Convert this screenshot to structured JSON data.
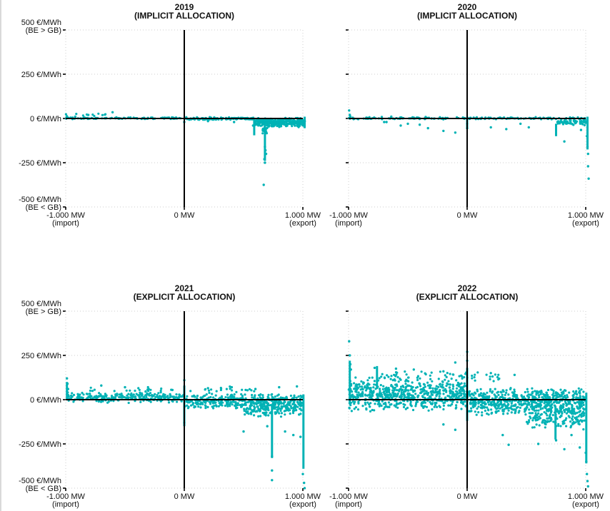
{
  "colors": {
    "points": "#00b2b5",
    "axis": "#000000",
    "grid": "#cccccc"
  },
  "chart_data": [
    {
      "type": "scatter",
      "title": [
        "2019",
        "(IMPLICIT ALLOCATION)"
      ],
      "xlim": [
        -1000,
        1000
      ],
      "ylim": [
        -500,
        500
      ],
      "show_y_labels": true,
      "x_ticks": [
        {
          "value": -1000,
          "label": [
            "-1.000 MW",
            "(import)"
          ]
        },
        {
          "value": 0,
          "label": [
            "0 MW"
          ]
        },
        {
          "value": 1000,
          "label": [
            "1.000 MW",
            "(export)"
          ]
        }
      ],
      "y_ticks": [
        {
          "value": 500,
          "label": [
            "500 €/MWh",
            "(BE > GB)"
          ]
        },
        {
          "value": 250,
          "label": [
            "250 €/MWh"
          ]
        },
        {
          "value": 0,
          "label": [
            "0 €/MWh"
          ]
        },
        {
          "value": -250,
          "label": [
            "-250 €/MWh"
          ]
        },
        {
          "value": -500,
          "label": [
            "-500 €/MWh",
            "(BE < GB)"
          ]
        }
      ],
      "grid": "dotted",
      "clusters": [
        {
          "x": [
            -1000,
            600
          ],
          "y": [
            -4,
            8
          ],
          "n": 140
        },
        {
          "x": [
            0,
            600
          ],
          "y": [
            -10,
            4
          ],
          "n": 80
        },
        {
          "x": [
            600,
            1020
          ],
          "y": [
            -50,
            5
          ],
          "n": 320
        },
        {
          "x": [
            660,
            700
          ],
          "y": [
            -90,
            -40
          ],
          "n": 25
        },
        {
          "x": [
            -1000,
            -580
          ],
          "y": [
            8,
            30
          ],
          "n": 12
        }
      ],
      "points": [
        [
          680,
          -160
        ],
        [
          685,
          -180
        ],
        [
          690,
          -200
        ],
        [
          675,
          -230
        ],
        [
          680,
          -250
        ],
        [
          670,
          -375
        ],
        [
          -605,
          35
        ],
        [
          -990,
          12
        ],
        [
          -920,
          10
        ],
        [
          0,
          -20
        ],
        [
          580,
          -40
        ],
        [
          420,
          -20
        ],
        [
          200,
          -15
        ]
      ],
      "bars": [
        {
          "x": 680,
          "y0": -30,
          "y1": -240
        },
        {
          "x": 590,
          "y0": 0,
          "y1": -95
        },
        {
          "x": 1015,
          "y0": 10,
          "y1": -55
        }
      ]
    },
    {
      "type": "scatter",
      "title": [
        "2020",
        "(IMPLICIT ALLOCATION)"
      ],
      "xlim": [
        -1000,
        1000
      ],
      "ylim": [
        -500,
        500
      ],
      "show_y_labels": false,
      "x_ticks": [
        {
          "value": -1000,
          "label": [
            "-1.000 MW",
            "(import)"
          ]
        },
        {
          "value": 0,
          "label": [
            "0 MW"
          ]
        },
        {
          "value": 1000,
          "label": [
            "1.000 MW",
            "(export)"
          ]
        }
      ],
      "y_ticks": [
        {
          "value": 500,
          "label": []
        },
        {
          "value": 250,
          "label": []
        },
        {
          "value": 0,
          "label": []
        },
        {
          "value": -250,
          "label": []
        },
        {
          "value": -500,
          "label": []
        }
      ],
      "grid": "dotted",
      "clusters": [
        {
          "x": [
            -1000,
            1000
          ],
          "y": [
            -6,
            8
          ],
          "n": 160
        },
        {
          "x": [
            760,
            1010
          ],
          "y": [
            -40,
            0
          ],
          "n": 70
        }
      ],
      "points": [
        [
          -995,
          45
        ],
        [
          -990,
          20
        ],
        [
          -985,
          10
        ],
        [
          -720,
          8
        ],
        [
          -450,
          5
        ],
        [
          -700,
          -20
        ],
        [
          -560,
          -40
        ],
        [
          -500,
          -30
        ],
        [
          -330,
          -55
        ],
        [
          -200,
          -70
        ],
        [
          -100,
          -80
        ],
        [
          -680,
          -20
        ],
        [
          -400,
          -35
        ],
        [
          -850,
          5
        ],
        [
          -300,
          0
        ],
        [
          200,
          -50
        ],
        [
          330,
          -60
        ],
        [
          450,
          -30
        ],
        [
          520,
          -50
        ],
        [
          820,
          -130
        ],
        [
          960,
          -65
        ],
        [
          1010,
          -100
        ],
        [
          1015,
          -160
        ],
        [
          1020,
          -270
        ],
        [
          1025,
          -340
        ],
        [
          1020,
          -200
        ],
        [
          0,
          -30
        ],
        [
          0,
          -55
        ],
        [
          -640,
          10
        ],
        [
          -350,
          8
        ]
      ],
      "bars": [
        {
          "x": 1015,
          "y0": 10,
          "y1": -175
        },
        {
          "x": 0,
          "y0": 0,
          "y1": -60
        },
        {
          "x": 750,
          "y0": -30,
          "y1": -100
        }
      ]
    },
    {
      "type": "scatter",
      "title": [
        "2021",
        "(EXPLICIT ALLOCATION)"
      ],
      "xlim": [
        -1000,
        1000
      ],
      "ylim": [
        -500,
        500
      ],
      "show_y_labels": true,
      "x_ticks": [
        {
          "value": -1000,
          "label": [
            "-1.000 MW",
            "(import)"
          ]
        },
        {
          "value": 0,
          "label": [
            "0 MW"
          ]
        },
        {
          "value": 1000,
          "label": [
            "1.000 MW",
            "(export)"
          ]
        }
      ],
      "y_ticks": [
        {
          "value": 500,
          "label": [
            "500 €/MWh",
            "(BE > GB)"
          ]
        },
        {
          "value": 250,
          "label": [
            "250 €/MWh"
          ]
        },
        {
          "value": 0,
          "label": [
            "0 €/MWh"
          ]
        },
        {
          "value": -250,
          "label": [
            "-250 €/MWh"
          ]
        },
        {
          "value": -500,
          "label": [
            "-500 €/MWh",
            "(BE < GB)"
          ]
        }
      ],
      "grid": "dotted",
      "clusters": [
        {
          "x": [
            -1000,
            0
          ],
          "y": [
            -20,
            45
          ],
          "n": 260
        },
        {
          "x": [
            0,
            1000
          ],
          "y": [
            -55,
            35
          ],
          "n": 420
        },
        {
          "x": [
            500,
            1000
          ],
          "y": [
            -100,
            -20
          ],
          "n": 120
        },
        {
          "x": [
            -800,
            600
          ],
          "y": [
            35,
            75
          ],
          "n": 40
        }
      ],
      "points": [
        [
          -990,
          120
        ],
        [
          -985,
          90
        ],
        [
          -980,
          60
        ],
        [
          -700,
          80
        ],
        [
          -500,
          70
        ],
        [
          -300,
          60
        ],
        [
          -100,
          55
        ],
        [
          200,
          65
        ],
        [
          400,
          70
        ],
        [
          600,
          60
        ],
        [
          800,
          70
        ],
        [
          950,
          75
        ],
        [
          700,
          -150
        ],
        [
          500,
          -180
        ],
        [
          850,
          -180
        ],
        [
          920,
          -200
        ],
        [
          980,
          -210
        ],
        [
          1000,
          -420
        ],
        [
          1010,
          -470
        ],
        [
          1015,
          -500
        ],
        [
          740,
          -320
        ],
        [
          740,
          -400
        ],
        [
          740,
          -455
        ],
        [
          0,
          110
        ],
        [
          0,
          -130
        ]
      ],
      "bars": [
        {
          "x": 1005,
          "y0": 30,
          "y1": -390
        },
        {
          "x": 740,
          "y0": -30,
          "y1": -330
        },
        {
          "x": 0,
          "y0": 80,
          "y1": -150
        },
        {
          "x": -990,
          "y0": 100,
          "y1": 0
        }
      ]
    },
    {
      "type": "scatter",
      "title": [
        "2022",
        "(EXPLICIT ALLOCATION)"
      ],
      "xlim": [
        -1000,
        1000
      ],
      "ylim": [
        -500,
        500
      ],
      "show_y_labels": false,
      "x_ticks": [
        {
          "value": -1000,
          "label": [
            "-1.000 MW",
            "(import)"
          ]
        },
        {
          "value": 0,
          "label": [
            "0 MW"
          ]
        },
        {
          "value": 1000,
          "label": [
            "1.000 MW",
            "(export)"
          ]
        }
      ],
      "y_ticks": [
        {
          "value": 500,
          "label": []
        },
        {
          "value": 250,
          "label": []
        },
        {
          "value": 0,
          "label": []
        },
        {
          "value": -250,
          "label": []
        },
        {
          "value": -500,
          "label": []
        }
      ],
      "grid": "dotted",
      "clusters": [
        {
          "x": [
            -1000,
            0
          ],
          "y": [
            -70,
            130
          ],
          "n": 650
        },
        {
          "x": [
            0,
            1000
          ],
          "y": [
            -90,
            70
          ],
          "n": 650
        },
        {
          "x": [
            500,
            1000
          ],
          "y": [
            -170,
            -40
          ],
          "n": 160
        },
        {
          "x": [
            -900,
            300
          ],
          "y": [
            100,
            170
          ],
          "n": 60
        }
      ],
      "points": [
        [
          -995,
          330
        ],
        [
          -990,
          250
        ],
        [
          -985,
          200
        ],
        [
          -980,
          170
        ],
        [
          -600,
          175
        ],
        [
          -450,
          170
        ],
        [
          -200,
          160
        ],
        [
          -100,
          210
        ],
        [
          0,
          220
        ],
        [
          0,
          270
        ],
        [
          200,
          150
        ],
        [
          400,
          140
        ],
        [
          300,
          -200
        ],
        [
          350,
          -255
        ],
        [
          600,
          -250
        ],
        [
          750,
          -230
        ],
        [
          820,
          -280
        ],
        [
          880,
          -200
        ],
        [
          950,
          -270
        ],
        [
          1000,
          -300
        ],
        [
          1005,
          -350
        ],
        [
          1010,
          -420
        ],
        [
          1015,
          -460
        ],
        [
          1020,
          -490
        ],
        [
          -780,
          180
        ],
        [
          -200,
          -140
        ],
        [
          -100,
          -170
        ]
      ],
      "bars": [
        {
          "x": 1005,
          "y0": 40,
          "y1": -360
        },
        {
          "x": 745,
          "y0": -40,
          "y1": -225
        },
        {
          "x": -990,
          "y0": 220,
          "y1": -10
        },
        {
          "x": 0,
          "y0": 180,
          "y1": -120
        },
        {
          "x": -760,
          "y0": 190,
          "y1": 60
        }
      ]
    }
  ]
}
